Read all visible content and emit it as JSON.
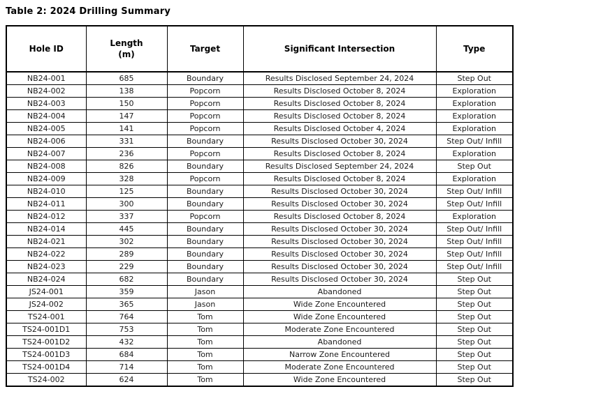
{
  "title": "Table 2: 2024 Drilling Summary",
  "table": {
    "headers": [
      "Hole ID",
      "Length\n(m)",
      "Target",
      "Significant Intersection",
      "Type"
    ],
    "rows": [
      [
        "NB24-001",
        "685",
        "Boundary",
        "Results Disclosed September 24, 2024",
        "Step Out"
      ],
      [
        "NB24-002",
        "138",
        "Popcorn",
        "Results Disclosed October 8, 2024",
        "Exploration"
      ],
      [
        "NB24-003",
        "150",
        "Popcorn",
        "Results Disclosed October 8, 2024",
        "Exploration"
      ],
      [
        "NB24-004",
        "147",
        "Popcorn",
        "Results Disclosed October 8, 2024",
        "Exploration"
      ],
      [
        "NB24-005",
        "141",
        "Popcorn",
        "Results Disclosed October 4, 2024",
        "Exploration"
      ],
      [
        "NB24-006",
        "331",
        "Boundary",
        "Results Disclosed October 30, 2024",
        "Step Out/ Infill"
      ],
      [
        "NB24-007",
        "236",
        "Popcorn",
        "Results Disclosed October 8, 2024",
        "Exploration"
      ],
      [
        "NB24-008",
        "826",
        "Boundary",
        "Results Disclosed September 24, 2024",
        "Step Out"
      ],
      [
        "NB24-009",
        "328",
        "Popcorn",
        "Results Disclosed October 8, 2024",
        "Exploration"
      ],
      [
        "NB24-010",
        "125",
        "Boundary",
        "Results Disclosed October 30, 2024",
        "Step Out/ Infill"
      ],
      [
        "NB24-011",
        "300",
        "Boundary",
        "Results Disclosed October 30, 2024",
        "Step Out/ Infill"
      ],
      [
        "NB24-012",
        "337",
        "Popcorn",
        "Results Disclosed October 8, 2024",
        "Exploration"
      ],
      [
        "NB24-014",
        "445",
        "Boundary",
        "Results Disclosed October 30, 2024",
        "Step Out/ Infill"
      ],
      [
        "NB24-021",
        "302",
        "Boundary",
        "Results Disclosed October 30, 2024",
        "Step Out/ Infill"
      ],
      [
        "NB24-022",
        "289",
        "Boundary",
        "Results Disclosed October 30, 2024",
        "Step Out/ Infill"
      ],
      [
        "NB24-023",
        "229",
        "Boundary",
        "Results Disclosed October 30, 2024",
        "Step Out/ Infill"
      ],
      [
        "NB24-024",
        "682",
        "Boundary",
        "Results Disclosed October 30, 2024",
        "Step Out"
      ],
      [
        "JS24-001",
        "359",
        "Jason",
        "Abandoned",
        "Step Out"
      ],
      [
        "JS24-002",
        "365",
        "Jason",
        "Wide Zone Encountered",
        "Step Out"
      ],
      [
        "TS24-001",
        "764",
        "Tom",
        "Wide Zone Encountered",
        "Step Out"
      ],
      [
        "TS24-001D1",
        "753",
        "Tom",
        "Moderate Zone Encountered",
        "Step Out"
      ],
      [
        "TS24-001D2",
        "432",
        "Tom",
        "Abandoned",
        "Step Out"
      ],
      [
        "TS24-001D3",
        "684",
        "Tom",
        "Narrow Zone Encountered",
        "Step Out"
      ],
      [
        "TS24-001D4",
        "714",
        "Tom",
        "Moderate Zone Encountered",
        "Step Out"
      ],
      [
        "TS24-002",
        "624",
        "Tom",
        "Wide Zone Encountered",
        "Step Out"
      ]
    ]
  }
}
